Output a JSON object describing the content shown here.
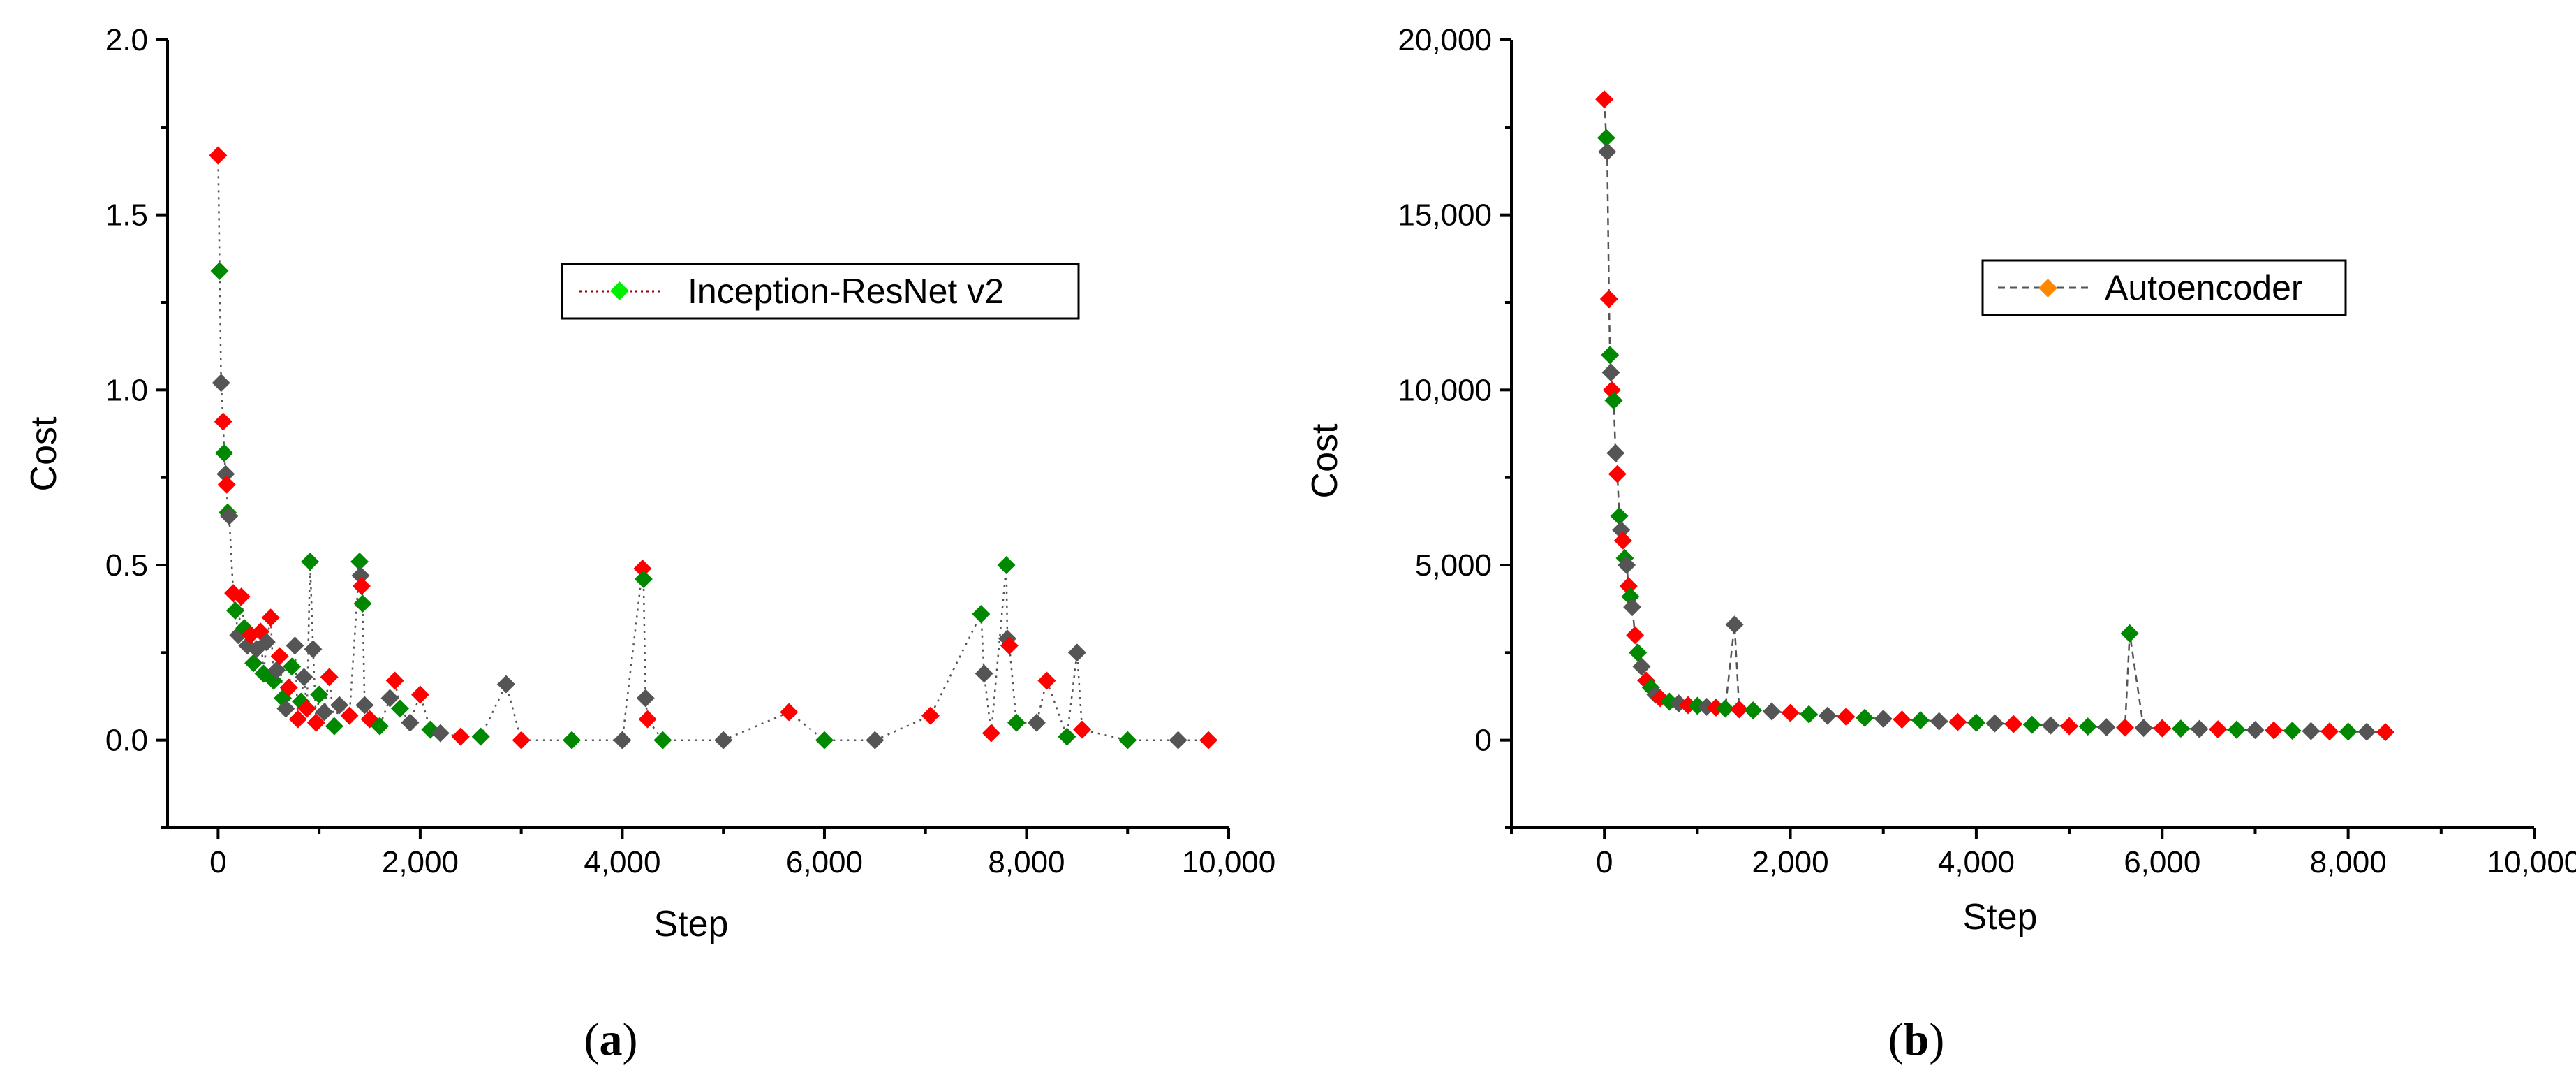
{
  "chart_data": [
    {
      "panel": "(a)",
      "panel_letter": "a",
      "type": "scatter",
      "series": [
        {
          "name": "Inception-ResNet v2",
          "line_style": "dotted",
          "legend_marker_color": "#00ee00",
          "points": [
            [
              0,
              1.67
            ],
            [
              15,
              1.34
            ],
            [
              30,
              1.02
            ],
            [
              50,
              0.91
            ],
            [
              60,
              0.82
            ],
            [
              75,
              0.76
            ],
            [
              85,
              0.73
            ],
            [
              95,
              0.65
            ],
            [
              110,
              0.64
            ],
            [
              150,
              0.42
            ],
            [
              170,
              0.37
            ],
            [
              200,
              0.3
            ],
            [
              230,
              0.41
            ],
            [
              260,
              0.32
            ],
            [
              290,
              0.27
            ],
            [
              320,
              0.3
            ],
            [
              350,
              0.22
            ],
            [
              380,
              0.26
            ],
            [
              420,
              0.31
            ],
            [
              450,
              0.19
            ],
            [
              480,
              0.28
            ],
            [
              520,
              0.35
            ],
            [
              550,
              0.17
            ],
            [
              580,
              0.2
            ],
            [
              610,
              0.24
            ],
            [
              640,
              0.12
            ],
            [
              670,
              0.09
            ],
            [
              700,
              0.15
            ],
            [
              730,
              0.21
            ],
            [
              760,
              0.27
            ],
            [
              790,
              0.06
            ],
            [
              820,
              0.11
            ],
            [
              850,
              0.18
            ],
            [
              880,
              0.09
            ],
            [
              910,
              0.51
            ],
            [
              940,
              0.26
            ],
            [
              970,
              0.05
            ],
            [
              1000,
              0.13
            ],
            [
              1050,
              0.08
            ],
            [
              1100,
              0.18
            ],
            [
              1150,
              0.04
            ],
            [
              1200,
              0.1
            ],
            [
              1300,
              0.07
            ],
            [
              1400,
              0.51
            ],
            [
              1410,
              0.47
            ],
            [
              1420,
              0.44
            ],
            [
              1430,
              0.39
            ],
            [
              1450,
              0.1
            ],
            [
              1500,
              0.06
            ],
            [
              1600,
              0.04
            ],
            [
              1700,
              0.12
            ],
            [
              1750,
              0.17
            ],
            [
              1800,
              0.09
            ],
            [
              1900,
              0.05
            ],
            [
              2000,
              0.13
            ],
            [
              2100,
              0.03
            ],
            [
              2200,
              0.02
            ],
            [
              2400,
              0.01
            ],
            [
              2600,
              0.01
            ],
            [
              2850,
              0.16
            ],
            [
              3000,
              0.0
            ],
            [
              3500,
              0.0
            ],
            [
              4000,
              0.0
            ],
            [
              4200,
              0.49
            ],
            [
              4210,
              0.46
            ],
            [
              4230,
              0.12
            ],
            [
              4250,
              0.06
            ],
            [
              4400,
              0.0
            ],
            [
              5000,
              0.0
            ],
            [
              5650,
              0.08
            ],
            [
              6000,
              0.0
            ],
            [
              6500,
              0.0
            ],
            [
              7050,
              0.07
            ],
            [
              7550,
              0.36
            ],
            [
              7580,
              0.19
            ],
            [
              7650,
              0.02
            ],
            [
              7800,
              0.5
            ],
            [
              7810,
              0.29
            ],
            [
              7830,
              0.27
            ],
            [
              7900,
              0.05
            ],
            [
              8100,
              0.05
            ],
            [
              8200,
              0.17
            ],
            [
              8400,
              0.01
            ],
            [
              8500,
              0.25
            ],
            [
              8550,
              0.03
            ],
            [
              9000,
              0.0
            ],
            [
              9500,
              0.0
            ],
            [
              9800,
              0.0
            ]
          ]
        }
      ],
      "xlabel": "Step",
      "ylabel": "Cost",
      "xlim": [
        -500,
        10000
      ],
      "ylim": [
        -0.25,
        2.0
      ],
      "xticks": [
        0,
        2000,
        4000,
        6000,
        8000,
        10000
      ],
      "xtick_labels": [
        "0",
        "2,000",
        "4,000",
        "6,000",
        "8,000",
        "10,000"
      ],
      "yticks": [
        0.0,
        0.5,
        1.0,
        1.5,
        2.0
      ],
      "ytick_labels": [
        "0.0",
        "0.5",
        "1.0",
        "1.5",
        "2.0"
      ],
      "legend_position": "upper-right",
      "grid": false
    },
    {
      "panel": "(b)",
      "panel_letter": "b",
      "type": "scatter",
      "series": [
        {
          "name": "Autoencoder",
          "line_style": "dashed",
          "legend_marker_color": "#ff8800",
          "points": [
            [
              0,
              18300
            ],
            [
              20,
              17200
            ],
            [
              30,
              16800
            ],
            [
              50,
              12600
            ],
            [
              60,
              11000
            ],
            [
              70,
              10500
            ],
            [
              80,
              10000
            ],
            [
              100,
              9700
            ],
            [
              120,
              8200
            ],
            [
              140,
              7600
            ],
            [
              160,
              6400
            ],
            [
              180,
              6000
            ],
            [
              200,
              5700
            ],
            [
              220,
              5200
            ],
            [
              240,
              5000
            ],
            [
              260,
              4400
            ],
            [
              280,
              4100
            ],
            [
              300,
              3800
            ],
            [
              330,
              3000
            ],
            [
              360,
              2500
            ],
            [
              400,
              2100
            ],
            [
              450,
              1700
            ],
            [
              500,
              1500
            ],
            [
              550,
              1300
            ],
            [
              600,
              1200
            ],
            [
              700,
              1100
            ],
            [
              800,
              1050
            ],
            [
              900,
              1000
            ],
            [
              1000,
              980
            ],
            [
              1100,
              950
            ],
            [
              1200,
              930
            ],
            [
              1300,
              900
            ],
            [
              1400,
              3300
            ],
            [
              1450,
              880
            ],
            [
              1600,
              850
            ],
            [
              1800,
              820
            ],
            [
              2000,
              780
            ],
            [
              2200,
              740
            ],
            [
              2400,
              700
            ],
            [
              2600,
              670
            ],
            [
              2800,
              640
            ],
            [
              3000,
              610
            ],
            [
              3200,
              590
            ],
            [
              3400,
              570
            ],
            [
              3600,
              540
            ],
            [
              3800,
              520
            ],
            [
              4000,
              500
            ],
            [
              4200,
              480
            ],
            [
              4400,
              460
            ],
            [
              4600,
              440
            ],
            [
              4800,
              420
            ],
            [
              5000,
              400
            ],
            [
              5200,
              390
            ],
            [
              5400,
              370
            ],
            [
              5600,
              360
            ],
            [
              5650,
              3050
            ],
            [
              5800,
              350
            ],
            [
              6000,
              340
            ],
            [
              6200,
              330
            ],
            [
              6400,
              320
            ],
            [
              6600,
              310
            ],
            [
              6800,
              300
            ],
            [
              7000,
              290
            ],
            [
              7200,
              280
            ],
            [
              7400,
              270
            ],
            [
              7600,
              260
            ],
            [
              7800,
              250
            ],
            [
              8000,
              245
            ],
            [
              8200,
              240
            ],
            [
              8400,
              230
            ]
          ]
        }
      ],
      "xlabel": "Step",
      "ylabel": "Cost",
      "xlim": [
        -1000,
        10000
      ],
      "ylim": [
        -2500,
        20000
      ],
      "xticks": [
        0,
        2000,
        4000,
        6000,
        8000,
        10000
      ],
      "xtick_labels": [
        "0",
        "2,000",
        "4,000",
        "6,000",
        "8,000",
        "10,000"
      ],
      "yticks": [
        0,
        5000,
        10000,
        15000,
        20000
      ],
      "ytick_labels": [
        "0",
        "5,000",
        "10,000",
        "15,000",
        "20,000"
      ],
      "legend_position": "upper-right",
      "grid": false
    }
  ],
  "marker_palette": [
    "#ff0000",
    "#00ee00",
    "#0000cc",
    "#00ffff",
    "#ff00ff",
    "#ffff00",
    "#880000",
    "#008800",
    "#000088",
    "#888800",
    "#880088",
    "#008888",
    "#c0c0c0",
    "#808080",
    "#555555",
    "#ff8800",
    "#8800ff",
    "#ff8888",
    "#88ff88",
    "#8888ff",
    "#000000"
  ]
}
